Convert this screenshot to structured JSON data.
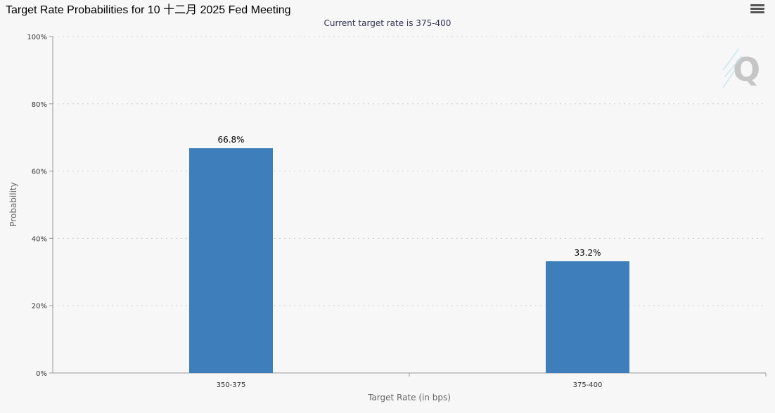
{
  "header": {
    "title": "Target Rate Probabilities for 10 十二月 2025 Fed Meeting",
    "menu_icon": "hamburger-menu-icon"
  },
  "chart_data": {
    "type": "bar",
    "title": "Target Rate Probabilities for 10 十二月 2025 Fed Meeting",
    "subtitle": "Current target rate is 375-400",
    "categories": [
      "350-375",
      "375-400"
    ],
    "values": [
      66.8,
      33.2
    ],
    "data_labels": [
      "66.8%",
      "33.2%"
    ],
    "xlabel": "Target Rate (in bps)",
    "ylabel": "Probability",
    "ylim": [
      0,
      100
    ],
    "yticks": [
      "0%",
      "20%",
      "40%",
      "60%",
      "80%",
      "100%"
    ],
    "grid": true,
    "bar_color": "#3d7ebb"
  }
}
